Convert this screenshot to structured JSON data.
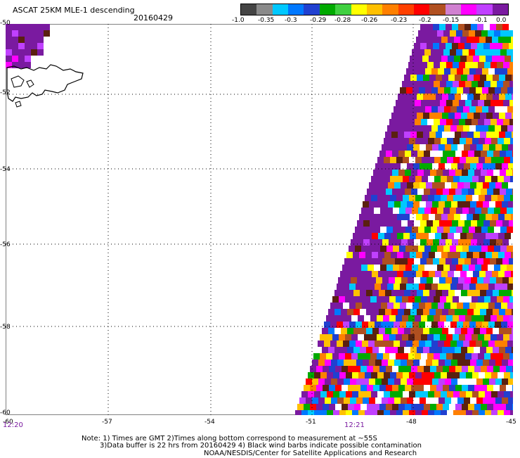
{
  "header": {
    "title": "ASCAT 25KM MLE-1 descending",
    "date": "20160429"
  },
  "colorbar": {
    "colors": [
      "#444444",
      "#8a8a8a",
      "#00c8ff",
      "#0078ff",
      "#2040d0",
      "#00aa00",
      "#40d040",
      "#ffff00",
      "#ffc000",
      "#ff8000",
      "#ff4000",
      "#ff0000",
      "#b05020",
      "#d080d0",
      "#ff00ff",
      "#c040ff",
      "#7a1aa0"
    ],
    "labels": [
      "-1.0",
      "-0.35",
      "-0.3",
      "-0.29",
      "-0.28",
      "-0.26",
      "-0.23",
      "-0.2",
      "-0.15",
      "-0.1",
      "0.0"
    ]
  },
  "axes": {
    "lat_labels": [
      "-50",
      "-52",
      "-54",
      "-56",
      "-58",
      "-60"
    ],
    "lon_labels": [
      "-60",
      "-57",
      "-54",
      "-51",
      "-48",
      "-45"
    ]
  },
  "times": {
    "left": "12:20",
    "mid": "12:21"
  },
  "notes": {
    "line1": "Note: 1) Times are GMT 2)Times along bottom correspond to measurement at ~55S",
    "line2": "3)Data buffer is 22 hrs from 20160429 4) Black wind barbs indicate possible contamination",
    "line3": "NOAA/NESDIS/Center for Satellite Applications and Research"
  },
  "map": {
    "swath_dominant_color": "#7a1aa0",
    "mix_colors": [
      "#7a1aa0",
      "#ff00ff",
      "#c040ff",
      "#ff0000",
      "#ffff00",
      "#ffc000",
      "#ff8000",
      "#00aa00",
      "#0078ff",
      "#00c8ff",
      "#b05020",
      "#5a2010",
      "#ffffff",
      "#2040d0"
    ]
  }
}
